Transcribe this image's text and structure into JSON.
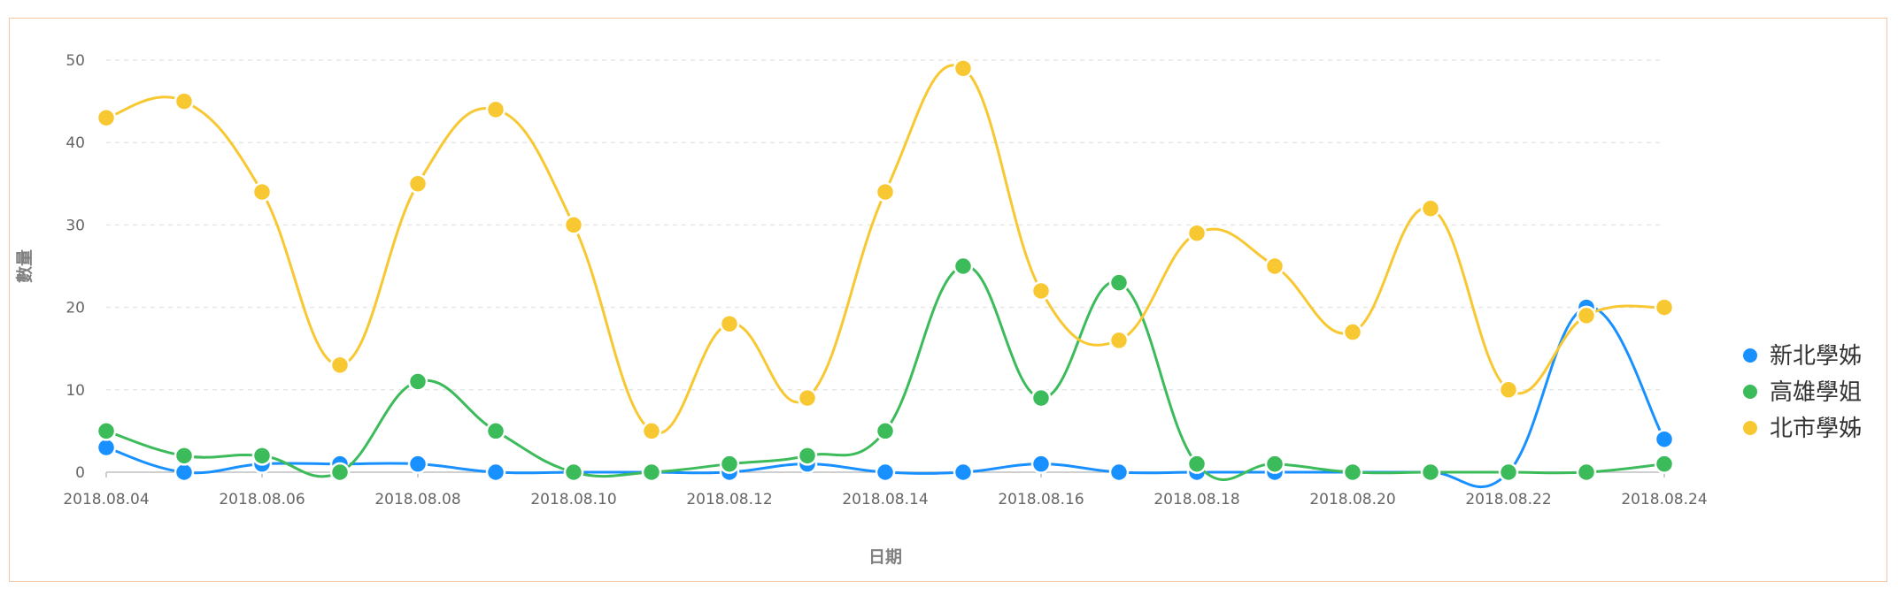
{
  "chart_data": {
    "type": "line",
    "smooth": true,
    "xlabel": "日期",
    "ylabel": "數量",
    "ylim": [
      0,
      50
    ],
    "yticks": [
      0,
      10,
      20,
      30,
      40,
      50
    ],
    "grid": "horizontal-dashed",
    "legend_position": "right",
    "x": [
      "2018.08.04",
      "2018.08.05",
      "2018.08.06",
      "2018.08.07",
      "2018.08.08",
      "2018.08.09",
      "2018.08.10",
      "2018.08.11",
      "2018.08.12",
      "2018.08.13",
      "2018.08.14",
      "2018.08.15",
      "2018.08.16",
      "2018.08.17",
      "2018.08.18",
      "2018.08.19",
      "2018.08.20",
      "2018.08.21",
      "2018.08.22",
      "2018.08.23",
      "2018.08.24"
    ],
    "x_tick_labels": [
      "2018.08.04",
      "2018.08.06",
      "2018.08.08",
      "2018.08.10",
      "2018.08.12",
      "2018.08.14",
      "2018.08.16",
      "2018.08.18",
      "2018.08.20",
      "2018.08.22",
      "2018.08.24"
    ],
    "series": [
      {
        "name": "新北學姊",
        "color": "#1890ff",
        "values": [
          3,
          0,
          1,
          1,
          1,
          0,
          0,
          0,
          0,
          1,
          0,
          0,
          1,
          0,
          0,
          0,
          0,
          0,
          0,
          20,
          4
        ]
      },
      {
        "name": "高雄學姐",
        "color": "#3cbb5a",
        "values": [
          5,
          2,
          2,
          0,
          11,
          5,
          0,
          0,
          1,
          2,
          5,
          25,
          9,
          23,
          1,
          1,
          0,
          0,
          0,
          0,
          1
        ]
      },
      {
        "name": "北市學姊",
        "color": "#f8c832",
        "values": [
          43,
          45,
          34,
          13,
          35,
          44,
          30,
          5,
          18,
          9,
          34,
          49,
          22,
          16,
          29,
          25,
          17,
          32,
          10,
          19,
          20
        ]
      }
    ]
  }
}
